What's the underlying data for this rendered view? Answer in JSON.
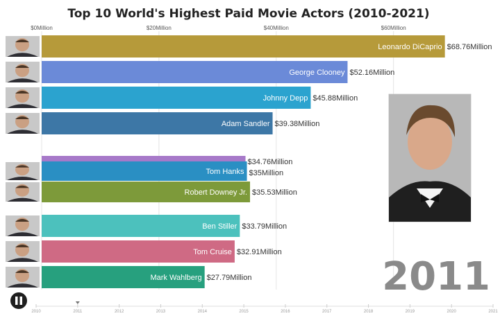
{
  "chart_data": {
    "type": "bar",
    "orientation": "horizontal",
    "title": "Top 10 World's Highest Paid Movie Actors (2010-2021)",
    "xlim": [
      0,
      76.5
    ],
    "x_ticks": [
      {
        "value": 0,
        "label": "$0Million"
      },
      {
        "value": 20,
        "label": "$20Million"
      },
      {
        "value": 40,
        "label": "$40Million"
      },
      {
        "value": 60,
        "label": "$60Million"
      }
    ],
    "bars": [
      {
        "name": "Leonardo DiCaprio",
        "value": 68.76,
        "value_label": "$68.76Million",
        "color": "#b69a3a",
        "avatar": true
      },
      {
        "name": "George Clooney",
        "value": 52.16,
        "value_label": "$52.16Million",
        "color": "#6b8ad8",
        "avatar": true
      },
      {
        "name": "Johnny Depp",
        "value": 45.88,
        "value_label": "$45.88Million",
        "color": "#2ba3cf",
        "avatar": true
      },
      {
        "name": "Adam Sandler",
        "value": 39.38,
        "value_label": "$39.38Million",
        "color": "#3d77a6",
        "avatar": true
      },
      {
        "name": "",
        "value": 34.76,
        "value_label": "$34.76Million",
        "color": "#a779c9",
        "avatar": false
      },
      {
        "name": "Tom Hanks",
        "value": 35,
        "value_label": "$35Million",
        "color": "#2a8fc3",
        "avatar": true
      },
      {
        "name": "Robert Downey Jr.",
        "value": 35.53,
        "value_label": "$35.53Million",
        "color": "#7d9a3a",
        "avatar": true
      },
      {
        "name": "Ben Stiller",
        "value": 33.79,
        "value_label": "$33.79Million",
        "color": "#4cc1bd",
        "avatar": true
      },
      {
        "name": "Tom Cruise",
        "value": 32.91,
        "value_label": "$32.91Million",
        "color": "#cf6a84",
        "avatar": true
      },
      {
        "name": "Mark Wahlberg",
        "value": 27.79,
        "value_label": "$27.79Million",
        "color": "#27a07e",
        "avatar": true
      }
    ],
    "year": "2011",
    "timeline": {
      "years": [
        "2010",
        "2011",
        "2012",
        "2013",
        "2014",
        "2015",
        "2016",
        "2017",
        "2018",
        "2019",
        "2020",
        "2021"
      ],
      "current": 2011
    },
    "featured_portrait": "Leonardo DiCaprio"
  },
  "controls": {
    "play_pause_icon": "pause-icon"
  }
}
